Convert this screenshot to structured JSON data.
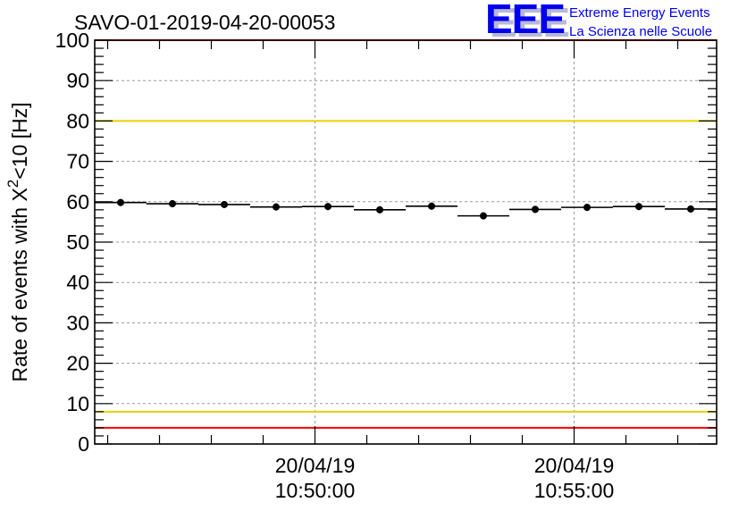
{
  "chart_data": {
    "type": "scatter",
    "title": "SAVO-01-2019-04-20-00053",
    "ylabel": {
      "main": "Rate of events with X",
      "superscript": "2",
      "suffix": "<10 [Hz]"
    },
    "xlabel": "",
    "ylim": [
      0,
      100
    ],
    "yticks": [
      "0",
      "10",
      "20",
      "30",
      "40",
      "50",
      "60",
      "70",
      "80",
      "90",
      "100"
    ],
    "xlim": [
      0,
      24
    ],
    "xticks": [
      {
        "x": 8.5,
        "date": "20/04/19",
        "time": "10:50:00"
      },
      {
        "x": 18.5,
        "date": "20/04/19",
        "time": "10:55:00"
      }
    ],
    "grid": true,
    "reference_lines": [
      {
        "name": "upper-red-limit",
        "y": 100,
        "color": "#ff0000"
      },
      {
        "name": "upper-yellow-limit",
        "y": 80,
        "color": "#e8d000"
      },
      {
        "name": "lower-yellow-limit",
        "y": 8,
        "color": "#e8d000"
      },
      {
        "name": "lower-red-limit",
        "y": 4,
        "color": "#ff0000"
      }
    ],
    "series": [
      {
        "name": "rate",
        "bin_width": 2,
        "x": [
          1,
          3,
          5,
          7,
          9,
          11,
          13,
          15,
          17,
          19,
          21,
          23
        ],
        "values": [
          59.8,
          59.5,
          59.3,
          58.7,
          58.8,
          58.0,
          58.9,
          56.5,
          58.1,
          58.6,
          58.8,
          58.2
        ],
        "color": "#000000"
      }
    ]
  },
  "logo": {
    "letters": "EEE",
    "line1": "Extreme Energy Events",
    "line2": "La Scienza nelle Scuole",
    "color": "#0000ee",
    "shadow_color": "#b8b8d8"
  }
}
